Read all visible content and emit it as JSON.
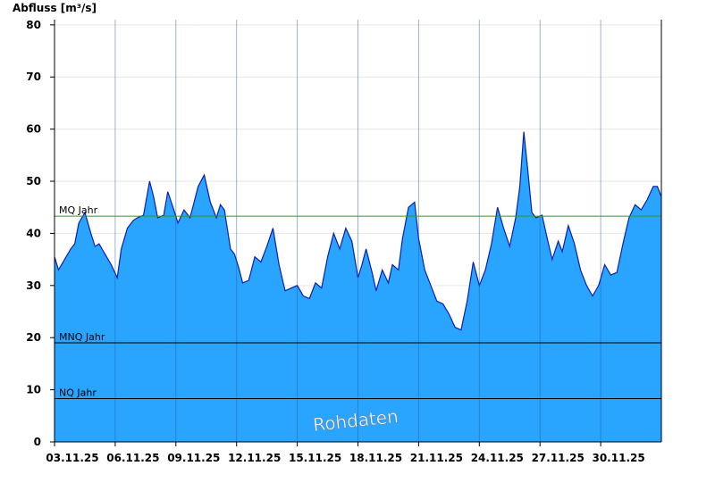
{
  "chart_data": {
    "type": "area",
    "ylabel": "Abfluss [m³/s]",
    "ylim": [
      0,
      81
    ],
    "yticks": [
      0,
      10,
      20,
      30,
      40,
      50,
      60,
      70,
      80
    ],
    "xlim": [
      0,
      30
    ],
    "xticks": [
      {
        "x": 0,
        "label": "03.11.25"
      },
      {
        "x": 3,
        "label": "06.11.25"
      },
      {
        "x": 6,
        "label": "09.11.25"
      },
      {
        "x": 9,
        "label": "12.11.25"
      },
      {
        "x": 12,
        "label": "15.11.25"
      },
      {
        "x": 15,
        "label": "18.11.25"
      },
      {
        "x": 18,
        "label": "21.11.25"
      },
      {
        "x": 21,
        "label": "24.11.25"
      },
      {
        "x": 24,
        "label": "27.11.25"
      },
      {
        "x": 27,
        "label": "30.11.25"
      }
    ],
    "grid": {
      "x": true,
      "y": true
    },
    "series": [
      {
        "fill_color": "#29a5ff",
        "line_color": "#0a1eb4",
        "x": [
          0,
          0.2,
          0.5,
          0.8,
          1.0,
          1.2,
          1.5,
          1.8,
          2.0,
          2.2,
          2.5,
          2.8,
          3.1,
          3.3,
          3.6,
          3.9,
          4.1,
          4.4,
          4.7,
          4.9,
          5.1,
          5.4,
          5.6,
          5.9,
          6.1,
          6.4,
          6.7,
          6.9,
          7.1,
          7.4,
          7.7,
          8.0,
          8.2,
          8.4,
          8.7,
          8.9,
          9.1,
          9.3,
          9.6,
          9.9,
          10.2,
          10.5,
          10.8,
          11.1,
          11.4,
          11.7,
          12.0,
          12.3,
          12.6,
          12.9,
          13.2,
          13.5,
          13.8,
          14.1,
          14.4,
          14.7,
          15.0,
          15.2,
          15.4,
          15.7,
          15.9,
          16.2,
          16.5,
          16.7,
          17.0,
          17.2,
          17.5,
          17.8,
          18.0,
          18.3,
          18.6,
          18.9,
          19.2,
          19.5,
          19.8,
          20.1,
          20.4,
          20.7,
          21.0,
          21.3,
          21.6,
          21.9,
          22.2,
          22.5,
          22.8,
          23.0,
          23.2,
          23.4,
          23.6,
          23.8,
          24.1,
          24.3,
          24.6,
          24.9,
          25.1,
          25.4,
          25.7,
          26.0,
          26.3,
          26.6,
          26.9,
          27.2,
          27.5,
          27.8,
          28.1,
          28.4,
          28.7,
          29.0,
          29.3,
          29.6,
          29.8,
          30.0
        ],
        "y": [
          35.5,
          33,
          35,
          37,
          38,
          42,
          44,
          40,
          37.5,
          38,
          36,
          34,
          31.5,
          37,
          41,
          42.5,
          43,
          43.5,
          50,
          47,
          43,
          43.5,
          48,
          44.5,
          42,
          44.5,
          43,
          46,
          49,
          51.2,
          46,
          43,
          45.5,
          44.5,
          37,
          36,
          33.5,
          30.5,
          31,
          35.5,
          34.5,
          37.5,
          41,
          34,
          29,
          29.5,
          30,
          28,
          27.5,
          30.5,
          29.5,
          35.5,
          40,
          37,
          41,
          38.5,
          31.5,
          34,
          37,
          32.5,
          29,
          33,
          30.5,
          34,
          33,
          39,
          45,
          46,
          39,
          33,
          30,
          27,
          26.5,
          24.5,
          22,
          21.5,
          27,
          34.5,
          30,
          33,
          38,
          45,
          41,
          37.5,
          43,
          49,
          59.5,
          52,
          44,
          43,
          43.5,
          40,
          35,
          38.5,
          36.5,
          41.5,
          38,
          33,
          30,
          28,
          30,
          34,
          32,
          32.5,
          38,
          43,
          45.5,
          44.5,
          46.5,
          49,
          49,
          47
        ]
      }
    ],
    "reference_lines": [
      {
        "label": "MQ Jahr",
        "y": 43.3,
        "color": "#3a8f3a"
      },
      {
        "label": "MNQ Jahr",
        "y": 19,
        "color": "#000000"
      },
      {
        "label": "NQ Jahr",
        "y": 8.3,
        "color": "#000000"
      }
    ],
    "watermark": "Rohdaten"
  }
}
